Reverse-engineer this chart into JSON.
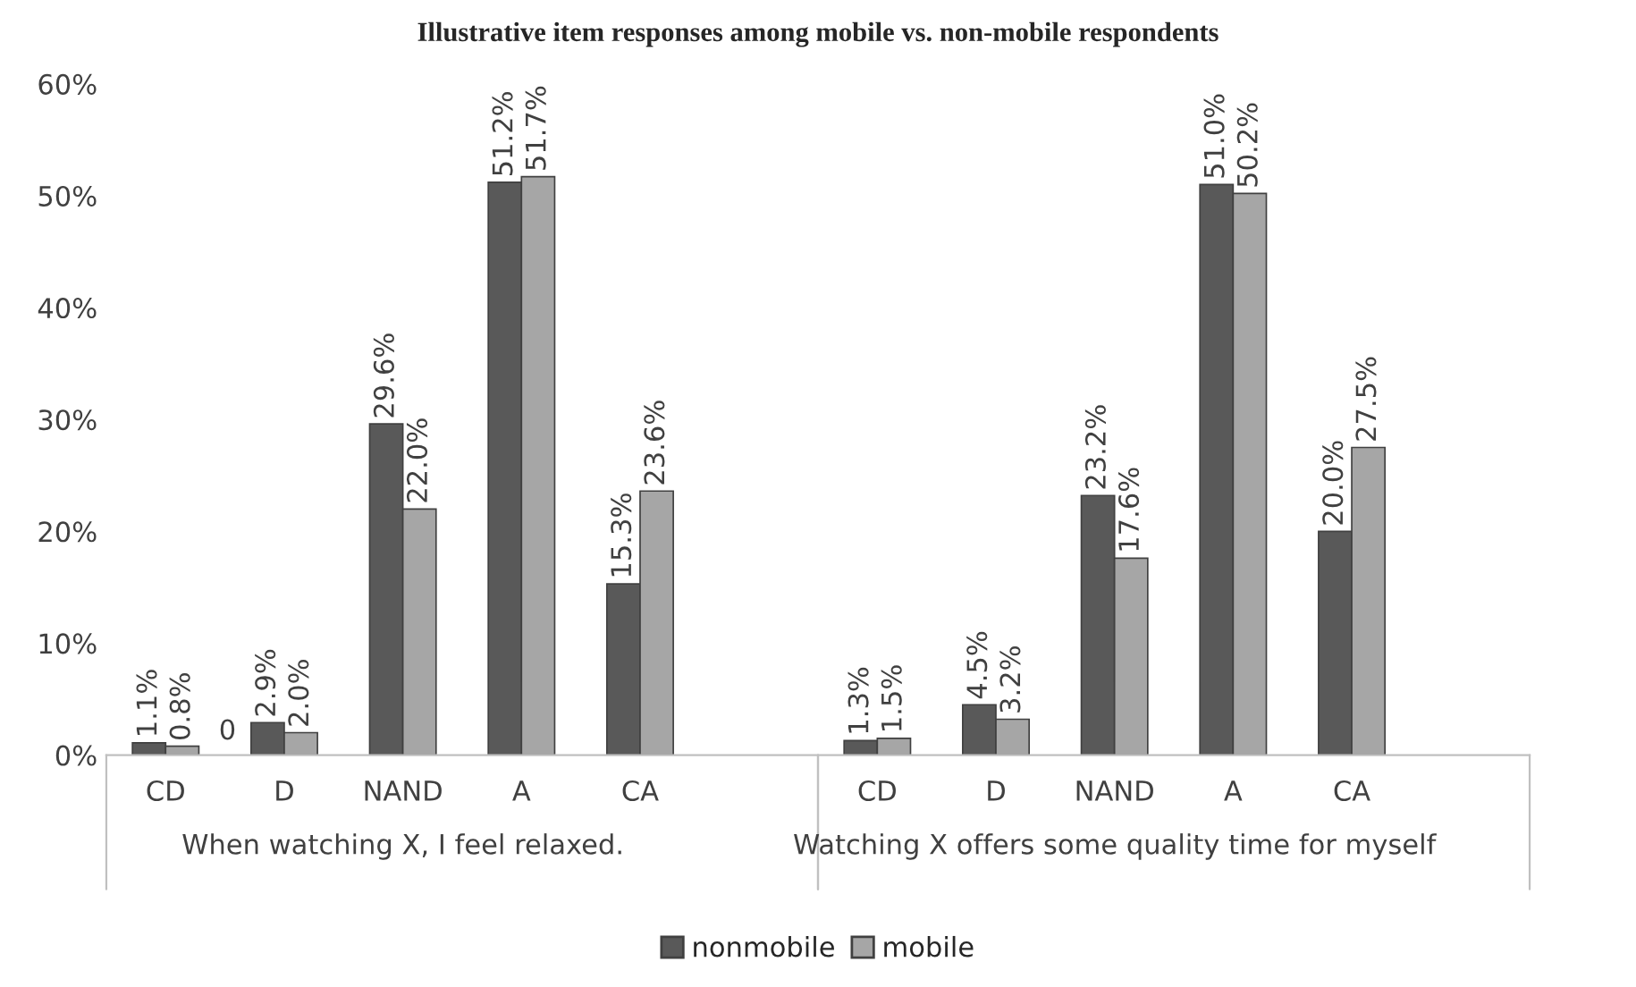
{
  "chart_data": {
    "type": "bar",
    "title": "Illustrative item responses among mobile vs. non-mobile respondents",
    "categories": [
      "CD",
      "D",
      "NAND",
      "A",
      "CA",
      null,
      "CD",
      "D",
      "NAND",
      "A",
      "CA",
      null
    ],
    "series": [
      {
        "name": "nonmobile",
        "color": "#595959",
        "values": [
          1.1,
          2.9,
          29.6,
          51.2,
          15.3,
          null,
          1.3,
          4.5,
          23.2,
          51.0,
          20.0,
          null
        ],
        "value_labels": [
          "1.1%",
          "2.9%",
          "29.6%",
          "51.2%",
          "15.3%",
          null,
          "1.3%",
          "4.5%",
          "23.2%",
          "51.0%",
          "20.0%",
          null
        ]
      },
      {
        "name": "mobile",
        "color": "#a6a6a6",
        "values": [
          0.8,
          2.0,
          22.0,
          51.7,
          23.6,
          null,
          1.5,
          3.2,
          17.6,
          50.2,
          27.5,
          null
        ],
        "value_labels": [
          "0.8%",
          "2.0%",
          "22.0%",
          "51.7%",
          "23.6%",
          null,
          "1.5%",
          "3.2%",
          "17.6%",
          "50.2%",
          "27.5%",
          null
        ]
      }
    ],
    "ylim": [
      0,
      60
    ],
    "yticks": [
      {
        "value": 0,
        "label": "0%"
      },
      {
        "value": 10,
        "label": "10%"
      },
      {
        "value": 20,
        "label": "20%"
      },
      {
        "value": 30,
        "label": "30%"
      },
      {
        "value": 40,
        "label": "40%"
      },
      {
        "value": 50,
        "label": "50%"
      },
      {
        "value": 60,
        "label": "60%"
      }
    ],
    "annotations": [
      "When watching X, I feel relaxed.",
      "Watching X offers some quality time for myself",
      {
        "text": "0",
        "x": "CD",
        "y": 0
      }
    ],
    "grid": false,
    "legend": "bottom"
  }
}
